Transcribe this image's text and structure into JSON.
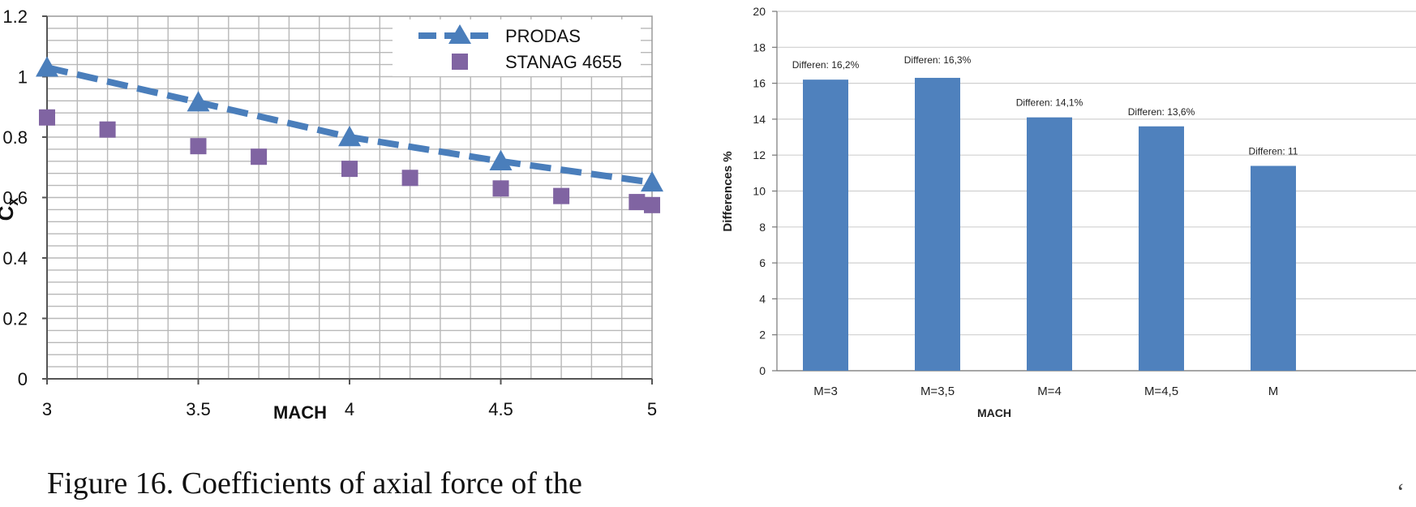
{
  "figure_caption": "Figure 16. Coefficients of axial force of the",
  "corner_glyph": "‘",
  "chart_data": [
    {
      "type": "line",
      "title": "",
      "xlabel": "MACH",
      "ylabel": "Cx",
      "ylabel_main": "C",
      "ylabel_sub": "x",
      "xlim": [
        3,
        5
      ],
      "ylim": [
        0,
        1.2
      ],
      "x_ticks": [
        3,
        3.5,
        4,
        4.5,
        5
      ],
      "x_tick_labels": [
        "3",
        "3.5",
        "4",
        "4.5",
        "5"
      ],
      "y_ticks": [
        0,
        0.2,
        0.4,
        0.6,
        0.8,
        1,
        1.2
      ],
      "y_tick_labels": [
        "0",
        "0.2",
        "0.4",
        "0.6",
        "0.8",
        "1",
        "1.2"
      ],
      "grid": true,
      "legend_position": "top-right",
      "series": [
        {
          "name": "PRODAS",
          "style": "dashed-line-triangle-markers",
          "color": "#4a7ebb",
          "x": [
            3,
            3.5,
            4,
            4.5,
            5
          ],
          "y": [
            1.03,
            0.915,
            0.8,
            0.72,
            0.65
          ]
        },
        {
          "name": "STANAG 4655",
          "style": "square-markers",
          "color": "#8064a2",
          "x": [
            3,
            3.2,
            3.5,
            3.7,
            4,
            4.2,
            4.5,
            4.7,
            4.95,
            5
          ],
          "y": [
            0.865,
            0.825,
            0.77,
            0.735,
            0.695,
            0.665,
            0.63,
            0.605,
            0.585,
            0.575
          ]
        }
      ]
    },
    {
      "type": "bar",
      "title": "",
      "xlabel": "MACH",
      "ylabel": "Differences %",
      "ylim": [
        0,
        20
      ],
      "y_ticks": [
        0,
        2,
        4,
        6,
        8,
        10,
        12,
        14,
        16,
        18,
        20
      ],
      "y_tick_labels": [
        "0",
        "2",
        "4",
        "6",
        "8",
        "10",
        "12",
        "14",
        "16",
        "18",
        "20"
      ],
      "grid": true,
      "color": "#4f81bd",
      "categories": [
        "M=3",
        "M=3,5",
        "M=4",
        "M=4,5",
        "M"
      ],
      "values": [
        16.2,
        16.3,
        14.1,
        13.6,
        11.4
      ],
      "data_labels": [
        "Differen: 16,2%",
        "Differen: 16,3%",
        "Differen: 14,1%",
        "Differen: 13,6%",
        "Differen: 11"
      ]
    }
  ]
}
